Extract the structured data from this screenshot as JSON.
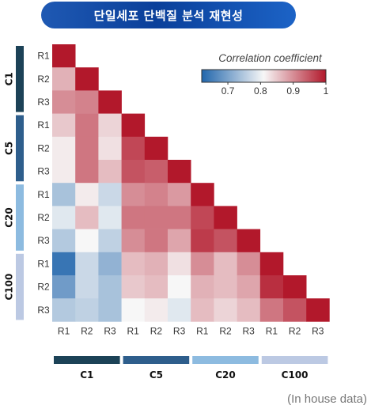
{
  "title": "단일세포 단백질 분석 재현성",
  "footnote": "(In house data)",
  "chart_data": {
    "type": "heatmap",
    "row_labels": [
      "R1",
      "R2",
      "R3",
      "R1",
      "R2",
      "R3",
      "R1",
      "R2",
      "R3",
      "R1",
      "R2",
      "R3"
    ],
    "col_labels": [
      "R1",
      "R2",
      "R3",
      "R1",
      "R2",
      "R3",
      "R1",
      "R2",
      "R3",
      "R1",
      "R2",
      "R3"
    ],
    "groups": [
      {
        "name": "C1",
        "color": "#1c4257"
      },
      {
        "name": "C5",
        "color": "#2e5e8c"
      },
      {
        "name": "C20",
        "color": "#8dbbe0"
      },
      {
        "name": "C100",
        "color": "#bcc9e3"
      }
    ],
    "triangle": "lower",
    "values": [
      [
        1.0
      ],
      [
        0.87,
        1.0
      ],
      [
        0.9,
        0.91,
        1.0
      ],
      [
        0.85,
        0.92,
        0.84,
        1.0
      ],
      [
        0.82,
        0.92,
        0.83,
        0.96,
        1.0
      ],
      [
        0.82,
        0.92,
        0.86,
        0.95,
        0.94,
        1.0
      ],
      [
        0.74,
        0.82,
        0.77,
        0.9,
        0.91,
        0.89,
        1.0
      ],
      [
        0.79,
        0.86,
        0.79,
        0.92,
        0.92,
        0.92,
        0.96,
        1.0
      ],
      [
        0.75,
        0.81,
        0.76,
        0.9,
        0.92,
        0.88,
        0.97,
        0.95,
        1.0
      ],
      [
        0.64,
        0.77,
        0.72,
        0.86,
        0.87,
        0.83,
        0.9,
        0.86,
        0.9,
        1.0
      ],
      [
        0.69,
        0.77,
        0.74,
        0.85,
        0.86,
        0.81,
        0.87,
        0.86,
        0.88,
        0.98,
        1.0
      ],
      [
        0.75,
        0.76,
        0.74,
        0.81,
        0.82,
        0.79,
        0.86,
        0.84,
        0.86,
        0.92,
        0.95,
        1.0
      ]
    ],
    "colorbar": {
      "title": "Correlation coefficient",
      "min": 0.62,
      "max": 1.0,
      "ticks": [
        0.7,
        0.8,
        0.9,
        1
      ],
      "colors": [
        "#2166ac",
        "#f7f7f7",
        "#b2182b"
      ]
    }
  }
}
